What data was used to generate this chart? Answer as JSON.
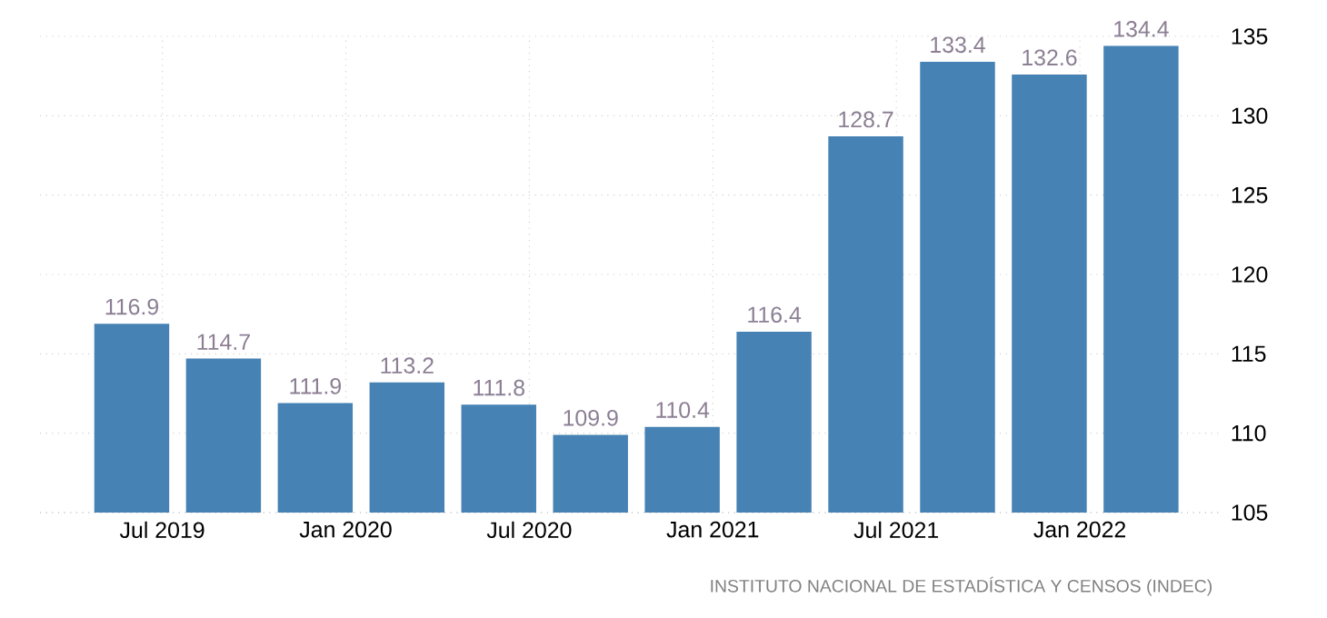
{
  "chart_data": {
    "type": "bar",
    "x": [
      "2019-06",
      "2019-09",
      "2019-12",
      "2020-03",
      "2020-06",
      "2020-09",
      "2020-12",
      "2021-03",
      "2021-06",
      "2021-09",
      "2021-12",
      "2022-03"
    ],
    "values": [
      116.9,
      114.7,
      111.9,
      113.2,
      111.8,
      109.9,
      110.4,
      116.4,
      128.7,
      133.4,
      132.6,
      134.4
    ],
    "color": "#4682b4",
    "xlim": [
      "2019-03",
      "2022-05-20"
    ],
    "xticks": [
      {
        "value": "2019-07",
        "label": "Jul 2019"
      },
      {
        "value": "2020-01",
        "label": "Jan 2020"
      },
      {
        "value": "2020-07",
        "label": "Jul 2020"
      },
      {
        "value": "2021-01",
        "label": "Jan 2021"
      },
      {
        "value": "2021-07",
        "label": "Jul 2021"
      },
      {
        "value": "2022-01",
        "label": "Jan 2022"
      }
    ],
    "ylim": [
      105,
      135
    ],
    "yticks": [
      105,
      110,
      115,
      120,
      125,
      130,
      135
    ],
    "grid": true,
    "data_labels": true,
    "annotations": [
      "INSTITUTO NACIONAL DE ESTADÍSTICA Y CENSOS (INDEC)"
    ]
  }
}
